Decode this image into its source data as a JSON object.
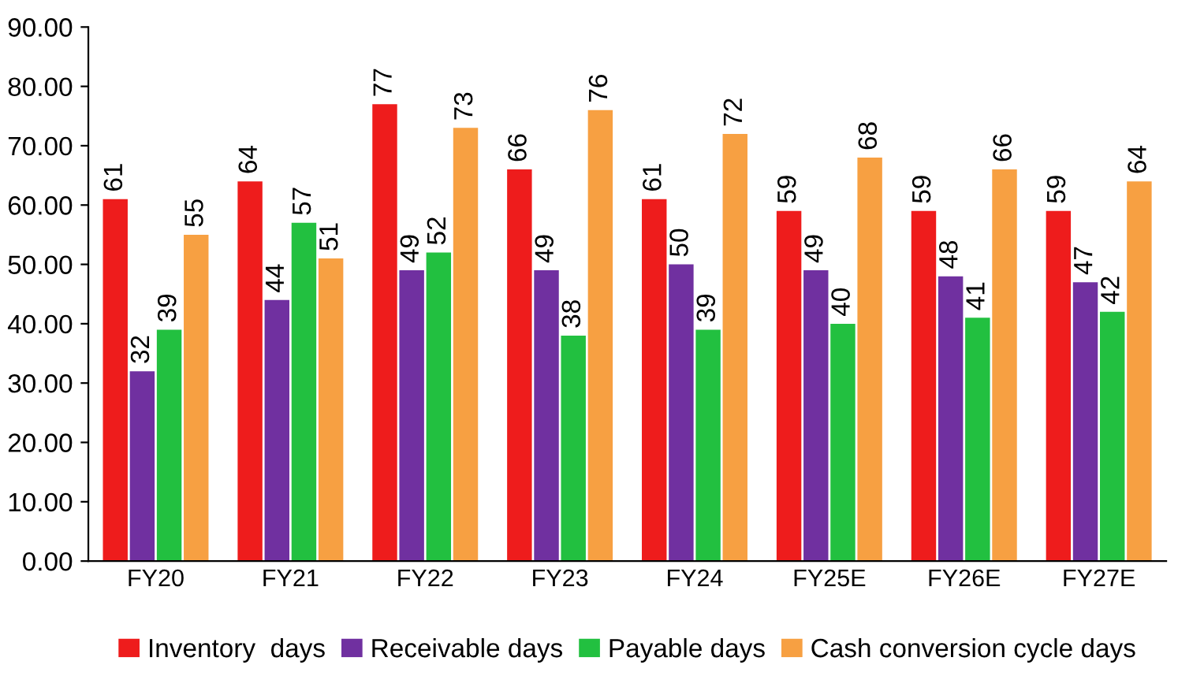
{
  "chart_data": {
    "type": "bar",
    "categories": [
      "FY20",
      "FY21",
      "FY22",
      "FY23",
      "FY24",
      "FY25E",
      "FY26E",
      "FY27E"
    ],
    "series": [
      {
        "name": "Inventory  days",
        "color": "#ee1c1c",
        "values": [
          61,
          64,
          77,
          66,
          61,
          59,
          59,
          59
        ]
      },
      {
        "name": "Receivable days",
        "color": "#7030a0",
        "values": [
          32,
          44,
          49,
          49,
          50,
          49,
          48,
          47
        ]
      },
      {
        "name": "Payable days",
        "color": "#22c040",
        "values": [
          39,
          57,
          52,
          38,
          39,
          40,
          41,
          42
        ]
      },
      {
        "name": "Cash conversion cycle days",
        "color": "#f7a042",
        "values": [
          55,
          51,
          73,
          76,
          72,
          68,
          66,
          64
        ]
      }
    ],
    "ylim": [
      0,
      90
    ],
    "yticks": [
      {
        "value": 0,
        "label": "0.00"
      },
      {
        "value": 10,
        "label": "10.00"
      },
      {
        "value": 20,
        "label": "20.00"
      },
      {
        "value": 30,
        "label": "30.00"
      },
      {
        "value": 40,
        "label": "40.00"
      },
      {
        "value": 50,
        "label": "50.00"
      },
      {
        "value": 60,
        "label": "60.00"
      },
      {
        "value": 70,
        "label": "70.00"
      },
      {
        "value": 80,
        "label": "80.00"
      },
      {
        "value": 90,
        "label": "90.00"
      }
    ],
    "data_labels": true,
    "grid": false,
    "legend": "bottom"
  }
}
